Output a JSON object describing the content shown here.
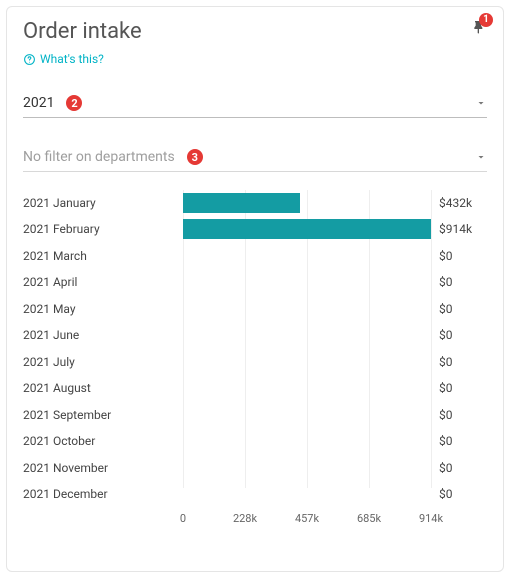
{
  "title": "Order intake",
  "help_text": "What's this?",
  "badge_color": "#e53935",
  "accent_color": "#00b3c6",
  "bar_color": "#149ca3",
  "pin_badge": "1",
  "year_select": {
    "value": "2021",
    "badge": "2"
  },
  "dept_select": {
    "value": "No filter on departments",
    "badge": "3"
  },
  "chart": {
    "max": 914,
    "rows": [
      {
        "label": "2021 January",
        "value": 432,
        "display": "$432k"
      },
      {
        "label": "2021 February",
        "value": 914,
        "display": "$914k"
      },
      {
        "label": "2021 March",
        "value": 0,
        "display": "$0"
      },
      {
        "label": "2021 April",
        "value": 0,
        "display": "$0"
      },
      {
        "label": "2021 May",
        "value": 0,
        "display": "$0"
      },
      {
        "label": "2021 June",
        "value": 0,
        "display": "$0"
      },
      {
        "label": "2021 July",
        "value": 0,
        "display": "$0"
      },
      {
        "label": "2021 August",
        "value": 0,
        "display": "$0"
      },
      {
        "label": "2021 September",
        "value": 0,
        "display": "$0"
      },
      {
        "label": "2021 October",
        "value": 0,
        "display": "$0"
      },
      {
        "label": "2021 November",
        "value": 0,
        "display": "$0"
      },
      {
        "label": "2021 December",
        "value": 0,
        "display": "$0"
      }
    ],
    "ticks": [
      {
        "pos": 0,
        "label": "0"
      },
      {
        "pos": 0.25,
        "label": "228k"
      },
      {
        "pos": 0.5,
        "label": "457k"
      },
      {
        "pos": 0.75,
        "label": "685k"
      },
      {
        "pos": 1.0,
        "label": "914k"
      }
    ]
  }
}
